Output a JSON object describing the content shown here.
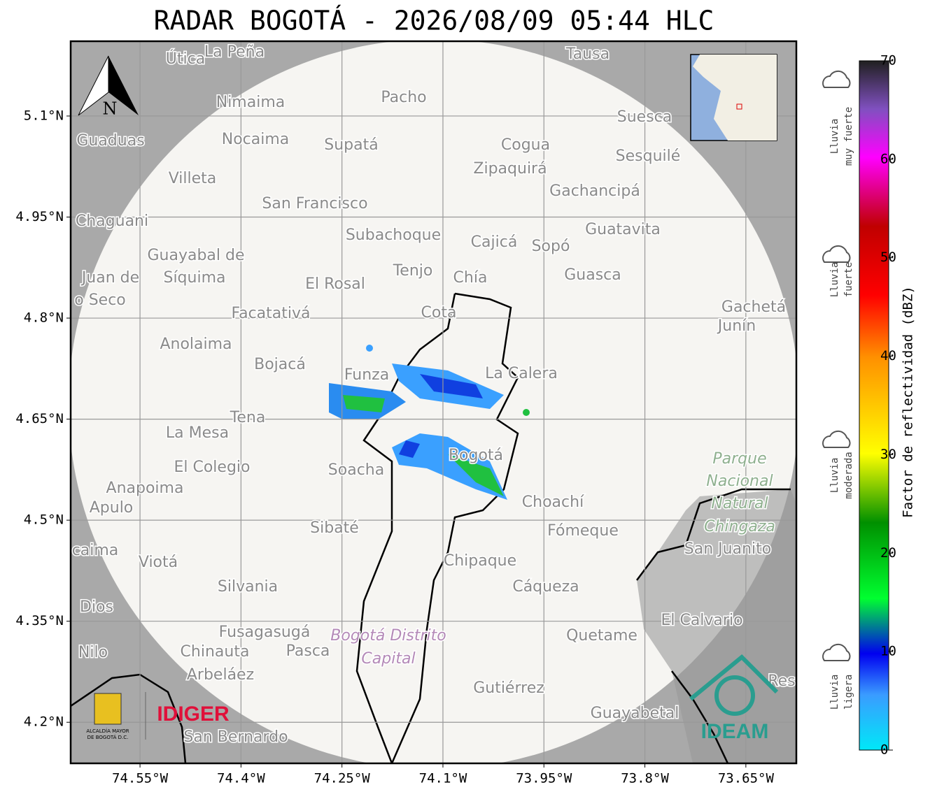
{
  "title": "RADAR BOGOTÁ - 2026/08/09 05:44 HLC",
  "map": {
    "xlim": [
      -74.653,
      -73.575
    ],
    "ylim": [
      4.139,
      5.211
    ],
    "xticks": [
      {
        "value": -74.55,
        "label": "74.55°W"
      },
      {
        "value": -74.4,
        "label": "74.4°W"
      },
      {
        "value": -74.25,
        "label": "74.25°W"
      },
      {
        "value": -74.1,
        "label": "74.1°W"
      },
      {
        "value": -73.95,
        "label": "73.95°W"
      },
      {
        "value": -73.8,
        "label": "73.8°W"
      },
      {
        "value": -73.65,
        "label": "73.65°W"
      }
    ],
    "yticks": [
      {
        "value": 5.1,
        "label": "5.1°N"
      },
      {
        "value": 4.95,
        "label": "4.95°N"
      },
      {
        "value": 4.8,
        "label": "4.8°N"
      },
      {
        "value": 4.65,
        "label": "4.65°N"
      },
      {
        "value": 4.5,
        "label": "4.5°N"
      },
      {
        "value": 4.35,
        "label": "4.35°N"
      },
      {
        "value": 4.2,
        "label": "4.2°N"
      }
    ],
    "north": "N",
    "places": [
      "Útica",
      "La Peña",
      "Tausa",
      "Pacho",
      "Nimaima",
      "Guaduas",
      "Nocaima",
      "Supatá",
      "Cogua",
      "Suesca",
      "Sesquilé",
      "Zipaquirá",
      "Villeta",
      "Gachancipá",
      "San Francisco",
      "Chaguani",
      "Guatavita",
      "Subachoque",
      "Cajicá",
      "Sopó",
      "Guayabal de",
      "Síquima",
      "Juan de",
      "Tenjo",
      "Chía",
      "Guasca",
      "El Rosal",
      "o Seco",
      "Cota",
      "Facatativá",
      "Gachetá",
      "Junín",
      "Anolaima",
      "Bojacá",
      "Funza",
      "La Calera",
      "Tena",
      "La Mesa",
      "El Colegio",
      "Soacha",
      "Bogotá",
      "Parque",
      "Nacional",
      "Natural",
      "Chingaza",
      "Anapoima",
      "Apulo",
      "Choachí",
      "Sibaté",
      "Fómeque",
      "San Juanito",
      "caima",
      "Viotá",
      "Chipaque",
      "Silvania",
      "Cáqueza",
      "Dios",
      "El Calvario",
      "Fusagasugá",
      "Bogotá Distrito",
      "Capital",
      "Quetame",
      "Nilo",
      "Chinauta",
      "Pasca",
      "Arbeláez",
      "Gutiérrez",
      "Res",
      "Guayabetal",
      "San Bernardo"
    ]
  },
  "logos": {
    "alcaldia": [
      "ALCALDÍA MAYOR",
      "DE BOGOTÁ D.C."
    ],
    "idiger": "IDIGER",
    "ideam": "IDEAM"
  },
  "colorbar": {
    "label": "Factor de reflectividad (dBZ)",
    "lim": [
      0,
      70
    ],
    "ticks": [
      0,
      10,
      20,
      30,
      40,
      50,
      60,
      70
    ],
    "categories": [
      [
        "Lluvia",
        "muy fuerte"
      ],
      [
        "Lluvia",
        "fuerte"
      ],
      [
        "Lluvia",
        "moderada"
      ],
      [
        "Lluvia",
        "ligera"
      ]
    ]
  }
}
